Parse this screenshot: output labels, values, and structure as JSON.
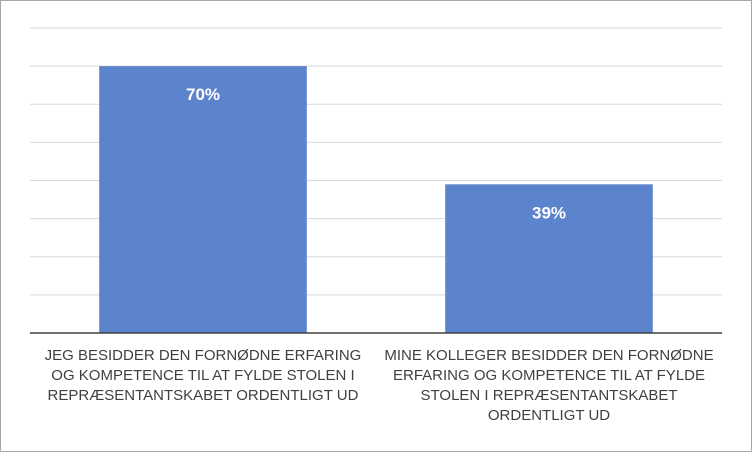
{
  "chart_data": {
    "type": "bar",
    "categories": [
      "JEG BESIDDER DEN FORNØDNE ERFARING OG KOMPETENCE TIL AT FYLDE STOLEN I REPRÆSENTANTSKABET ORDENTLIGT UD",
      "MINE KOLLEGER BESIDDER DEN FORNØDNE ERFARING OG KOMPETENCE TIL AT FYLDE STOLEN I REPRÆSENTANTSKABET ORDENTLIGT UD"
    ],
    "values": [
      70,
      39
    ],
    "data_labels": [
      "70%",
      "39%"
    ],
    "title": "",
    "xlabel": "",
    "ylabel": "",
    "ylim": [
      0,
      80
    ],
    "grid": true,
    "legend": "none",
    "bar_color": "#5b84cc",
    "grid_color": "#d9d9d9",
    "axis_color": "#404040"
  }
}
